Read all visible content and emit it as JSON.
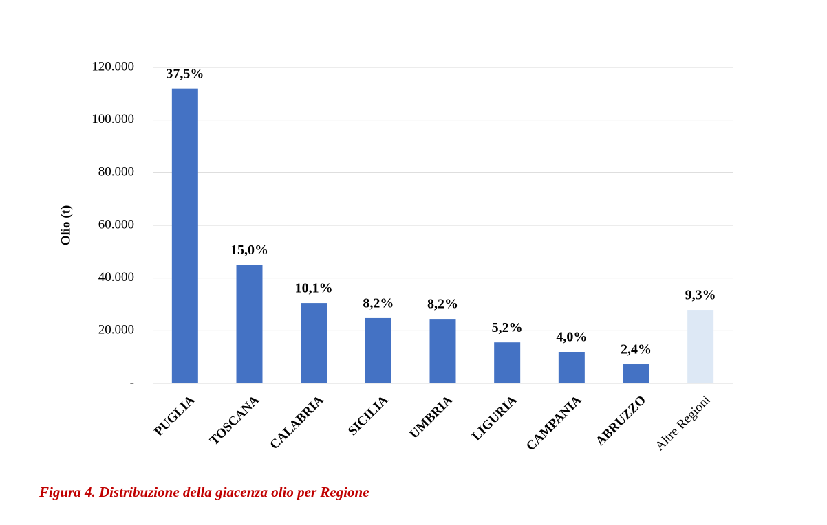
{
  "chart_data": {
    "type": "bar",
    "y_label": "Olio (t)",
    "caption": "Figura 4. Distribuzione della giacenza olio per Regione",
    "categories": [
      "PUGLIA",
      "TOSCANA",
      "CALABRIA",
      "SICILIA",
      "UMBRIA",
      "LIGURIA",
      "CAMPANIA",
      "ABRUZZO",
      "Altre Regioni"
    ],
    "values": [
      112000,
      45000,
      30500,
      24800,
      24500,
      15600,
      12000,
      7300,
      27900
    ],
    "labels": [
      "37,5%",
      "15,0%",
      "10,1%",
      "8,2%",
      "8,2%",
      "5,2%",
      "4,0%",
      "2,4%",
      "9,3%"
    ],
    "colors": [
      "#4472c4",
      "#4472c4",
      "#4472c4",
      "#4472c4",
      "#4472c4",
      "#4472c4",
      "#4472c4",
      "#4472c4",
      "#dde8f5"
    ],
    "ylim": [
      0,
      120000
    ],
    "yticks": [
      {
        "value": 0,
        "label": "-"
      },
      {
        "value": 20000,
        "label": "20.000"
      },
      {
        "value": 40000,
        "label": "40.000"
      },
      {
        "value": 60000,
        "label": "60.000"
      },
      {
        "value": 80000,
        "label": "80.000"
      },
      {
        "value": 100000,
        "label": "100.000"
      },
      {
        "value": 120000,
        "label": "120.000"
      }
    ],
    "grid": true
  }
}
